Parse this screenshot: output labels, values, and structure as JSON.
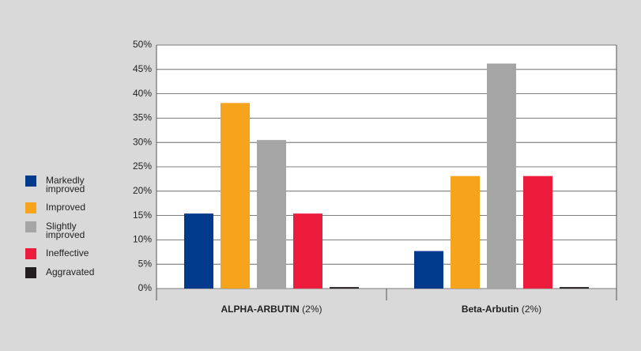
{
  "chart_data": {
    "type": "bar",
    "categories": [
      "ALPHA-ARBUTIN (2%)",
      "Beta-Arbutin (2%)"
    ],
    "series": [
      {
        "name": "Markedly improved",
        "color": "#003a8c",
        "values": [
          15.4,
          7.7
        ]
      },
      {
        "name": "Improved",
        "color": "#f5a41c",
        "values": [
          38.1,
          23.1
        ]
      },
      {
        "name": "Slightly improved",
        "color": "#a5a5a5",
        "values": [
          30.5,
          46.2
        ]
      },
      {
        "name": "Ineffective",
        "color": "#ee1c3c",
        "values": [
          15.4,
          23.1
        ]
      },
      {
        "name": "Aggravated",
        "color": "#231f20",
        "values": [
          0.3,
          0.3
        ]
      }
    ],
    "ylim": [
      0,
      50
    ],
    "yticks": [
      {
        "value": 0,
        "label": "0%"
      },
      {
        "value": 5,
        "label": "5%"
      },
      {
        "value": 10,
        "label": "10%"
      },
      {
        "value": 15,
        "label": "15%"
      },
      {
        "value": 20,
        "label": "20%"
      },
      {
        "value": 25,
        "label": "25%"
      },
      {
        "value": 30,
        "label": "30%"
      },
      {
        "value": 35,
        "label": "35%"
      },
      {
        "value": 40,
        "label": "40%"
      },
      {
        "value": 45,
        "label": "45%"
      },
      {
        "value": 50,
        "label": "50%"
      }
    ],
    "grid": true,
    "legend": "left"
  }
}
